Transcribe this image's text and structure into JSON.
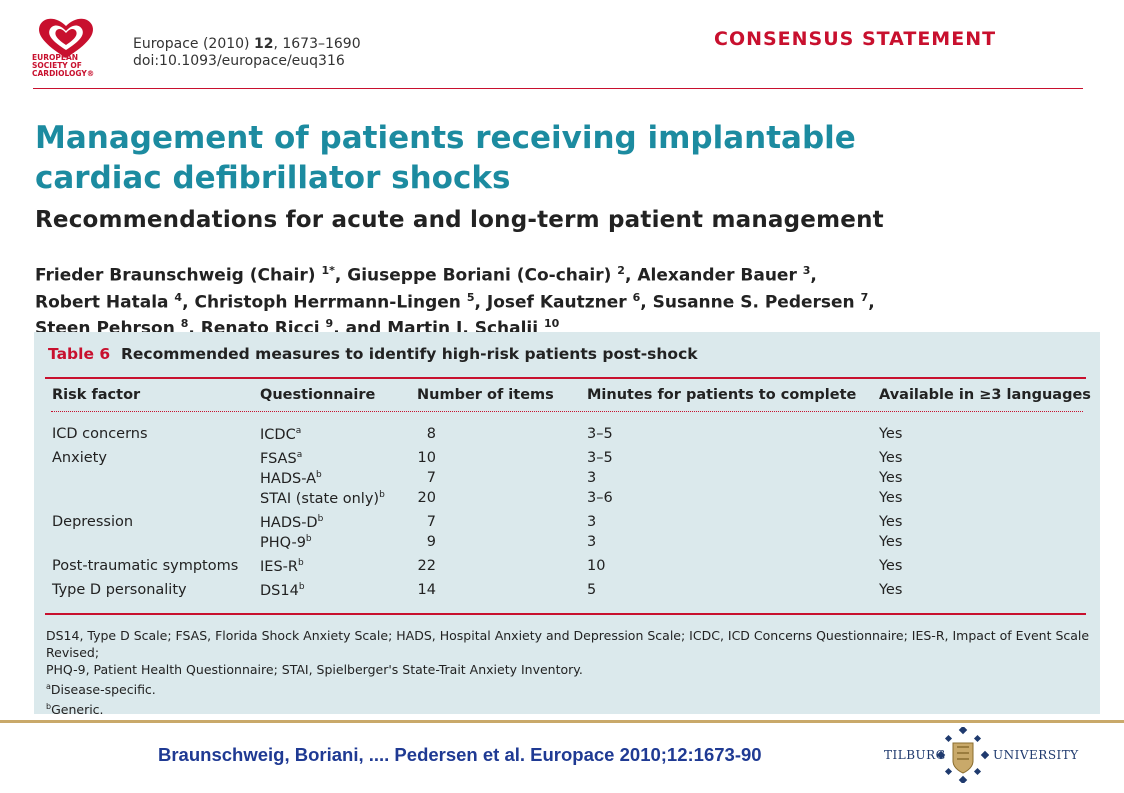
{
  "header": {
    "logo_text": [
      "EUROPEAN",
      "SOCIETY OF",
      "CARDIOLOGY®"
    ],
    "journal_line": "Europace (2010) ",
    "journal_volume": "12",
    "journal_pages": ", 1673–1690",
    "doi": "doi:10.1093/europace/euq316",
    "category": "CONSENSUS STATEMENT",
    "colors": {
      "accent_red": "#c8102e",
      "title_teal": "#1c8ba0",
      "panel_bg": "#dbe9ec",
      "citation_blue": "#1f3a93"
    }
  },
  "article": {
    "title_line1": "Management of patients receiving implantable",
    "title_line2": "cardiac defibrillator shocks",
    "subtitle": "Recommendations for acute and long-term patient management",
    "authors": [
      [
        {
          "name": "Frieder Braunschweig (Chair)",
          "sup": "1*",
          "sep": ", "
        },
        {
          "name": "Giuseppe Boriani (Co-chair)",
          "sup": "2",
          "sep": ", "
        },
        {
          "name": "Alexander Bauer",
          "sup": "3",
          "sep": ","
        }
      ],
      [
        {
          "name": "Robert Hatala",
          "sup": "4",
          "sep": ", "
        },
        {
          "name": "Christoph Herrmann-Lingen",
          "sup": "5",
          "sep": ", "
        },
        {
          "name": "Josef Kautzner",
          "sup": "6",
          "sep": ", "
        },
        {
          "name": "Susanne S. Pedersen",
          "sup": "7",
          "sep": ","
        }
      ],
      [
        {
          "name": "Steen Pehrson",
          "sup": "8",
          "sep": ", "
        },
        {
          "name": "Renato Ricci",
          "sup": "9",
          "sep": ", and "
        },
        {
          "name": "Martin J. Schalij",
          "sup": "10",
          "sep": ""
        }
      ]
    ]
  },
  "table": {
    "label": "Table 6",
    "caption": "Recommended measures to identify high-risk patients post-shock",
    "headers": [
      "Risk factor",
      "Questionnaire",
      "Number of items",
      "Minutes for patients to complete",
      "Available in ≥3 languages"
    ],
    "rows": [
      {
        "risk": "ICD concerns",
        "q": "ICDC",
        "sup": "a",
        "items": "8",
        "minutes": "3–5",
        "avail": "Yes"
      },
      {
        "risk": "Anxiety",
        "q": "FSAS",
        "sup": "a",
        "items": "10",
        "minutes": "3–5",
        "avail": "Yes"
      },
      {
        "risk": "",
        "q": "HADS-A",
        "sup": "b",
        "items": "7",
        "minutes": "3",
        "avail": "Yes"
      },
      {
        "risk": "",
        "q": "STAI (state only)",
        "sup": "b",
        "items": "20",
        "minutes": "3–6",
        "avail": "Yes"
      },
      {
        "risk": "Depression",
        "q": "HADS-D",
        "sup": "b",
        "items": "7",
        "minutes": "3",
        "avail": "Yes"
      },
      {
        "risk": "",
        "q": "PHQ-9",
        "sup": "b",
        "items": "9",
        "minutes": "3",
        "avail": "Yes"
      },
      {
        "risk": "Post-traumatic symptoms",
        "q": "IES-R",
        "sup": "b",
        "items": "22",
        "minutes": "10",
        "avail": "Yes"
      },
      {
        "risk": "Type D personality",
        "q": "DS14",
        "sup": "b",
        "items": "14",
        "minutes": "5",
        "avail": "Yes"
      }
    ],
    "footnote_abbrev_1": "DS14, Type D Scale; FSAS, Florida Shock Anxiety Scale; HADS, Hospital Anxiety and Depression Scale; ICDC, ICD Concerns Questionnaire; IES-R, Impact of Event Scale Revised;",
    "footnote_abbrev_2": "PHQ-9, Patient Health Questionnaire; STAI, Spielberger's State-Trait Anxiety Inventory.",
    "footnote_a_mark": "a",
    "footnote_a": "Disease-specific.",
    "footnote_b_mark": "b",
    "footnote_b": "Generic."
  },
  "footer": {
    "citation": "Braunschweig, Boriani, .... Pedersen et al. Europace 2010;12:1673-90",
    "tilburg_left": "TILBURG",
    "tilburg_right": "UNIVERSITY",
    "colors": {
      "rule_gold": "#c9a96a",
      "tilburg_blue": "#1f3a6e",
      "emblem_gold": "#c9a96a"
    }
  }
}
